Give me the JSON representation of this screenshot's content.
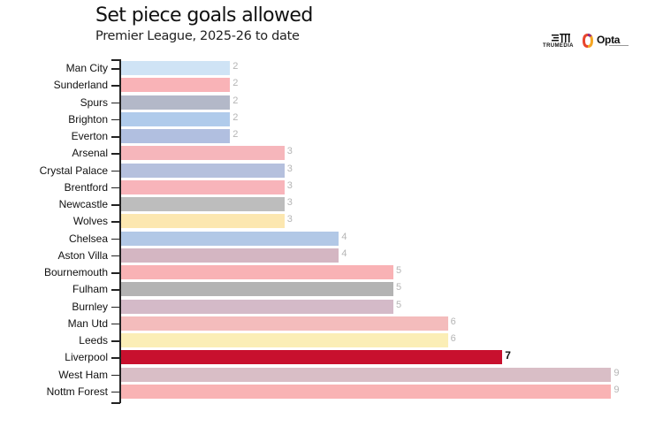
{
  "header": {
    "title": "Set piece goals allowed",
    "subtitle": "Premier League, 2025-26 to date"
  },
  "logos": {
    "trumedia": "TRUMEDIA",
    "opta": "Opta"
  },
  "chart_data": {
    "type": "bar",
    "orientation": "horizontal",
    "title": "Set piece goals allowed",
    "subtitle": "Premier League, 2025-26 to date",
    "xlabel": "",
    "ylabel": "",
    "xlim": [
      0,
      9
    ],
    "grid": false,
    "legend": "none",
    "highlight": "Liverpool",
    "categories": [
      "Man City",
      "Sunderland",
      "Spurs",
      "Brighton",
      "Everton",
      "Arsenal",
      "Crystal Palace",
      "Brentford",
      "Newcastle",
      "Wolves",
      "Chelsea",
      "Aston Villa",
      "Bournemouth",
      "Fulham",
      "Burnley",
      "Man Utd",
      "Leeds",
      "Liverpool",
      "West Ham",
      "Nottm Forest"
    ],
    "values": [
      2,
      2,
      2,
      2,
      2,
      3,
      3,
      3,
      3,
      3,
      4,
      4,
      5,
      5,
      5,
      6,
      6,
      7,
      9,
      9
    ],
    "colors": [
      "#cfe3f5",
      "#f9b3b7",
      "#b3b8c8",
      "#b0cbeb",
      "#b1bfe0",
      "#f6b6bb",
      "#b5c0dd",
      "#f8b4ba",
      "#bdbdbd",
      "#fce7b0",
      "#b2c8e6",
      "#d4b6c2",
      "#f9b2b5",
      "#b3b3b3",
      "#d4bac8",
      "#f4bcbc",
      "#fbeeb6",
      "#c8102e",
      "#d9bec6",
      "#f9b3b4"
    ]
  },
  "rows": [
    {
      "label": "Man City",
      "value": "2"
    },
    {
      "label": "Sunderland",
      "value": "2"
    },
    {
      "label": "Spurs",
      "value": "2"
    },
    {
      "label": "Brighton",
      "value": "2"
    },
    {
      "label": "Everton",
      "value": "2"
    },
    {
      "label": "Arsenal",
      "value": "3"
    },
    {
      "label": "Crystal Palace",
      "value": "3"
    },
    {
      "label": "Brentford",
      "value": "3"
    },
    {
      "label": "Newcastle",
      "value": "3"
    },
    {
      "label": "Wolves",
      "value": "3"
    },
    {
      "label": "Chelsea",
      "value": "4"
    },
    {
      "label": "Aston Villa",
      "value": "4"
    },
    {
      "label": "Bournemouth",
      "value": "5"
    },
    {
      "label": "Fulham",
      "value": "5"
    },
    {
      "label": "Burnley",
      "value": "5"
    },
    {
      "label": "Man Utd",
      "value": "6"
    },
    {
      "label": "Leeds",
      "value": "6"
    },
    {
      "label": "Liverpool",
      "value": "7"
    },
    {
      "label": "West Ham",
      "value": "9"
    },
    {
      "label": "Nottm Forest",
      "value": "9"
    }
  ]
}
